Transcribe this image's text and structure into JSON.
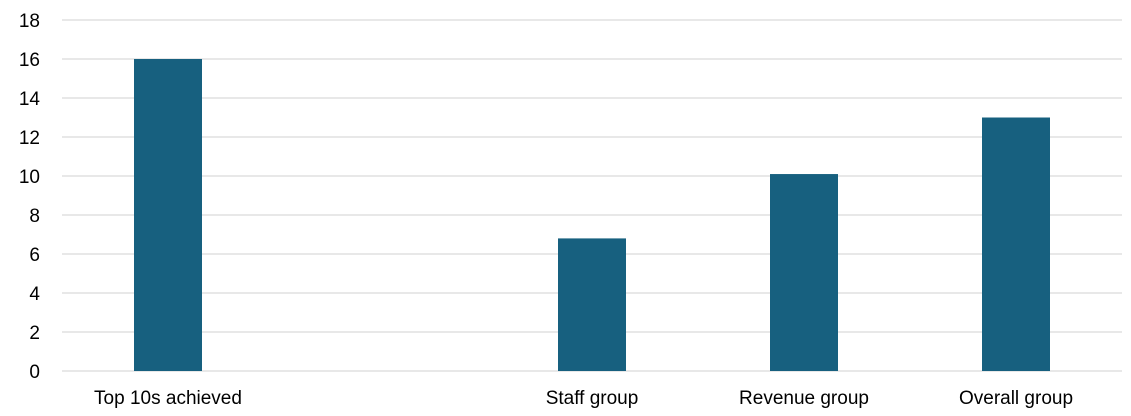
{
  "chart_data": {
    "type": "bar",
    "categories": [
      "Top 10s achieved",
      "",
      "Staff group",
      "Revenue group",
      "Overall group"
    ],
    "values": [
      16,
      null,
      6.8,
      10.1,
      13.0
    ],
    "title": "",
    "xlabel": "",
    "ylabel": "",
    "ylim": [
      0,
      18
    ],
    "yticks": [
      0,
      2,
      4,
      6,
      8,
      10,
      12,
      14,
      16,
      18
    ],
    "grid": true,
    "legend": "none",
    "bar_color": "#17607f",
    "grid_color": "#d9d9d9"
  }
}
